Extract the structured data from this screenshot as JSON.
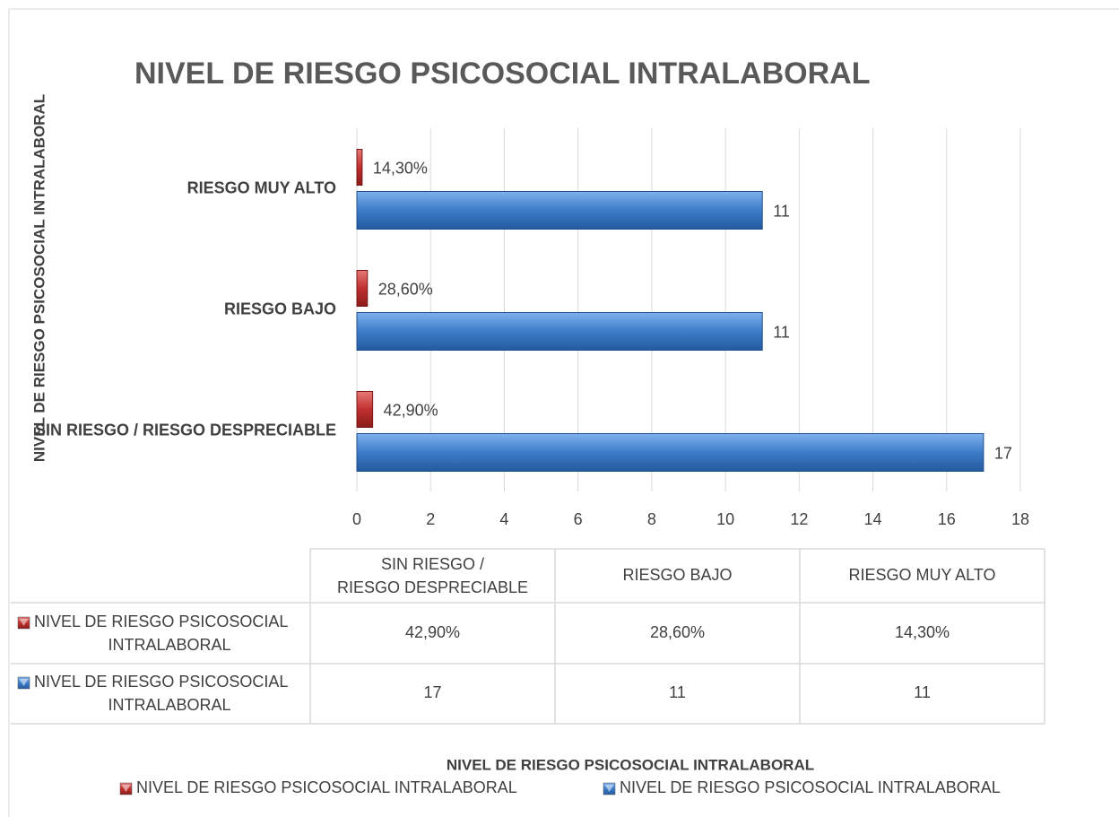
{
  "chart_data": {
    "type": "bar",
    "title": "NIVEL DE RIESGO PSICOSOCIAL INTRALABORAL",
    "y_label": "NIVEL DE RIESGO PSICOSOCIAL INTRALABORAL",
    "x_label": "NIVEL DE RIESGO PSICOSOCIAL INTRALABORAL",
    "categories": [
      "SIN RIESGO / RIESGO DESPRECIABLE",
      "RIESGO BAJO",
      "RIESGO MUY ALTO"
    ],
    "series": [
      {
        "name": "NIVEL DE RIESGO PSICOSOCIAL INTRALABORAL",
        "color": "#c0302f",
        "values": [
          0.429,
          0.286,
          0.143
        ],
        "value_labels": [
          "42,90%",
          "28,60%",
          "14,30%"
        ]
      },
      {
        "name": "NIVEL DE RIESGO PSICOSOCIAL INTRALABORAL",
        "color": "#3d7cc9",
        "values": [
          17,
          11,
          11
        ]
      }
    ],
    "xlim": [
      0,
      18
    ],
    "xticks": [
      0,
      2,
      4,
      6,
      8,
      10,
      12,
      14,
      16,
      18
    ],
    "grid": true
  }
}
